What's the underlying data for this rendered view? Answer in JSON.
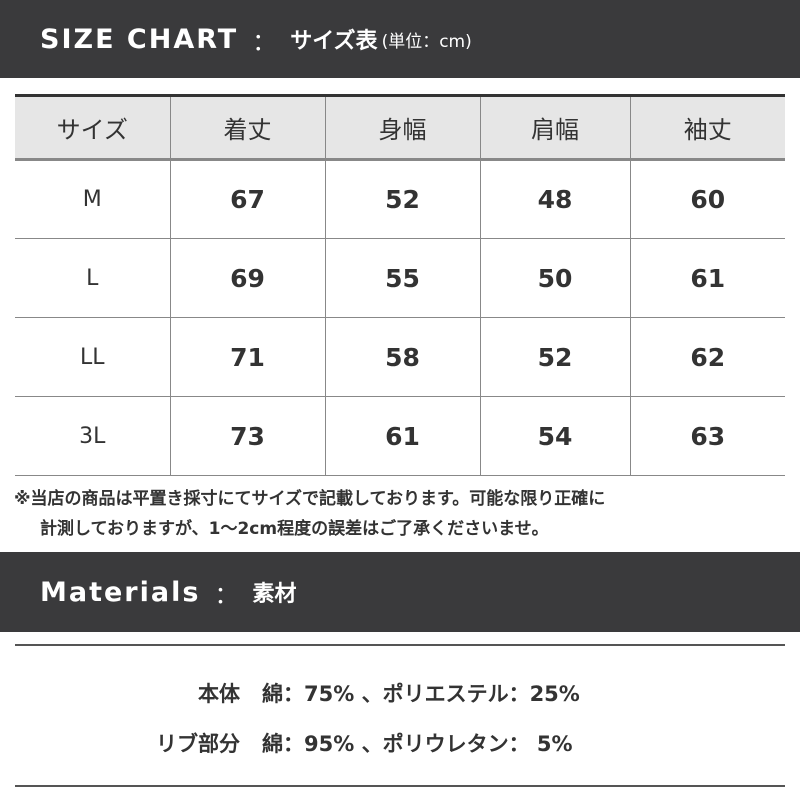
{
  "size_chart": {
    "title_en": "SIZE CHART",
    "separator": "：",
    "title_jp": "サイズ表",
    "unit": "(単位：cm)",
    "columns": [
      "サイズ",
      "着丈",
      "身幅",
      "肩幅",
      "袖丈"
    ],
    "rows": [
      [
        "M",
        "67",
        "52",
        "48",
        "60"
      ],
      [
        "L",
        "69",
        "55",
        "50",
        "61"
      ],
      [
        "LL",
        "71",
        "58",
        "52",
        "62"
      ],
      [
        "3L",
        "73",
        "61",
        "54",
        "63"
      ]
    ]
  },
  "note": {
    "line1": "※当店の商品は平置き採寸にてサイズで記載しております。可能な限り正確に",
    "line2": "計測しておりますが、1〜2cm程度の誤差はご了承くださいませ。"
  },
  "materials": {
    "title_en": "Materials",
    "separator": "：",
    "title_jp": "素材",
    "rows": [
      {
        "part": "本体",
        "value": "綿：75% 、ポリエステル：25%"
      },
      {
        "part": "リブ部分",
        "value": "綿：95% 、ポリウレタン： 5%"
      }
    ]
  },
  "colors": {
    "header_bg": "#3a3a3c",
    "table_header_bg": "#e6e6e6"
  }
}
